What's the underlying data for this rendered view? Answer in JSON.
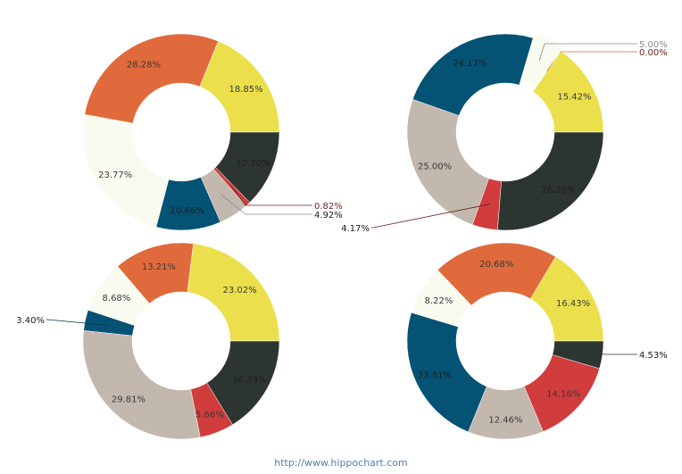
{
  "footer": "http://www.hippochart.com",
  "colors": {
    "yellow": "#ebe04b",
    "orange": "#e06a3b",
    "offwhite": "#f9fbf0",
    "blue": "#045274",
    "beige": "#c2b8ae",
    "red": "#d13c3c",
    "dark": "#2d3530"
  },
  "chart_data": [
    {
      "type": "pie",
      "style": "donut",
      "slices": [
        {
          "value": 18.85,
          "label": "18.85%",
          "color": "yellow"
        },
        {
          "value": 28.28,
          "label": "28.28%",
          "color": "orange"
        },
        {
          "value": 23.77,
          "label": "23.77%",
          "color": "offwhite"
        },
        {
          "value": 10.66,
          "label": "10.66%",
          "color": "blue"
        },
        {
          "value": 4.92,
          "label": "4.92%",
          "color": "beige"
        },
        {
          "value": 0.82,
          "label": "0.82%",
          "color": "red"
        },
        {
          "value": 12.7,
          "label": "12.70%",
          "color": "dark"
        }
      ]
    },
    {
      "type": "pie",
      "style": "donut",
      "slices": [
        {
          "value": 15.42,
          "label": "15.42%",
          "color": "yellow"
        },
        {
          "value": 0.0,
          "label": "0.00%",
          "color": "orange"
        },
        {
          "value": 5.0,
          "label": "5.00%",
          "color": "offwhite"
        },
        {
          "value": 24.17,
          "label": "24.17%",
          "color": "blue"
        },
        {
          "value": 25.0,
          "label": "25.00%",
          "color": "beige"
        },
        {
          "value": 4.17,
          "label": "4.17%",
          "color": "red"
        },
        {
          "value": 26.25,
          "label": "26.25%",
          "color": "dark"
        }
      ]
    },
    {
      "type": "pie",
      "style": "donut",
      "slices": [
        {
          "value": 23.02,
          "label": "23.02%",
          "color": "yellow"
        },
        {
          "value": 13.21,
          "label": "13.21%",
          "color": "orange"
        },
        {
          "value": 8.68,
          "label": "8.68%",
          "color": "offwhite"
        },
        {
          "value": 3.4,
          "label": "3.40%",
          "color": "blue"
        },
        {
          "value": 29.81,
          "label": "29.81%",
          "color": "beige"
        },
        {
          "value": 5.66,
          "label": "5.66%",
          "color": "red"
        },
        {
          "value": 16.23,
          "label": "16.23%",
          "color": "dark"
        }
      ]
    },
    {
      "type": "pie",
      "style": "donut",
      "slices": [
        {
          "value": 16.43,
          "label": "16.43%",
          "color": "yellow"
        },
        {
          "value": 20.68,
          "label": "20.68%",
          "color": "orange"
        },
        {
          "value": 8.22,
          "label": "8.22%",
          "color": "offwhite"
        },
        {
          "value": 23.51,
          "label": "23.51%",
          "color": "blue"
        },
        {
          "value": 12.46,
          "label": "12.46%",
          "color": "beige"
        },
        {
          "value": 14.16,
          "label": "14.16%",
          "color": "red"
        },
        {
          "value": 4.53,
          "label": "4.53%",
          "color": "dark"
        }
      ]
    }
  ]
}
